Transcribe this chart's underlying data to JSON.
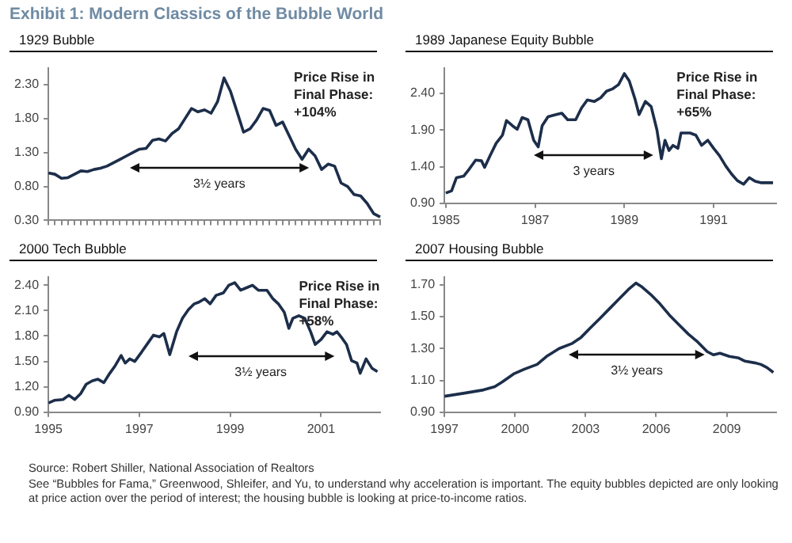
{
  "chart_data": [
    {
      "type": "line",
      "title": "Exhibit 1: Modern Classics of the Bubble World",
      "subtitle": "1929 Bubble",
      "tick_labels": "y",
      "marker": "none",
      "line_style": "solid",
      "grid": false,
      "legend": false,
      "categories": [
        null,
        null,
        null,
        null,
        null,
        null,
        null,
        null,
        null,
        null,
        null,
        null,
        null,
        null,
        null,
        null,
        null,
        null,
        null,
        null,
        null,
        null,
        null,
        null,
        null,
        null,
        null,
        null,
        null,
        null,
        null,
        null,
        null,
        null,
        null,
        null,
        null,
        null,
        null,
        null,
        null,
        null,
        null,
        null,
        null,
        null,
        null,
        null,
        null,
        null,
        null,
        null
      ],
      "series": [
        {
          "color": "#1c2e4a",
          "values": [
            1.0,
            0.98,
            0.92,
            0.93,
            0.98,
            1.03,
            1.02,
            1.05,
            1.07,
            1.1,
            1.15,
            1.2,
            1.25,
            1.3,
            1.35,
            1.36,
            1.48,
            1.5,
            1.47,
            1.58,
            1.65,
            1.8,
            1.95,
            1.9,
            1.93,
            1.88,
            2.05,
            2.4,
            2.2,
            1.9,
            1.6,
            1.65,
            1.78,
            1.95,
            1.92,
            1.7,
            1.75,
            1.55,
            1.35,
            1.2,
            1.35,
            1.25,
            1.05,
            1.13,
            1.1,
            0.85,
            0.8,
            0.68,
            0.66,
            0.55,
            0.4,
            0.35
          ]
        }
      ],
      "ylim": [
        0.3,
        2.55
      ],
      "yticks": [
        {
          "value": 0.3,
          "label": "0.30"
        },
        {
          "value": 0.8,
          "label": "0.80"
        },
        {
          "value": 1.3,
          "label": "1.30"
        },
        {
          "value": 1.8,
          "label": "1.80"
        },
        {
          "value": 2.3,
          "label": "2.30"
        }
      ],
      "annotations": [
        "3½ years",
        "Price Rise in\nFinal Phase:\n+104%"
      ]
    },
    {
      "type": "line",
      "subtitle": "1989 Japanese Equity Bubble",
      "marker": "none",
      "line_style": "solid",
      "grid": false,
      "legend": false,
      "x": [
        1985.0,
        1985.13,
        1985.24,
        1985.4,
        1985.53,
        1985.67,
        1985.8,
        1985.87,
        1986.0,
        1986.13,
        1986.27,
        1986.36,
        1986.49,
        1986.6,
        1986.71,
        1986.84,
        1986.97,
        1987.07,
        1987.16,
        1987.29,
        1987.47,
        1987.6,
        1987.73,
        1987.91,
        1988.04,
        1988.17,
        1988.33,
        1988.47,
        1988.6,
        1988.73,
        1988.87,
        1989.0,
        1989.11,
        1989.24,
        1989.33,
        1989.47,
        1989.6,
        1989.73,
        1989.83,
        1989.91,
        1990.0,
        1990.09,
        1990.2,
        1990.27,
        1990.47,
        1990.6,
        1990.73,
        1990.87,
        1991.0,
        1991.13,
        1991.27,
        1991.4,
        1991.53,
        1991.67,
        1991.8,
        1991.93,
        1992.07,
        1992.33
      ],
      "series": [
        {
          "color": "#1c2e4a",
          "values": [
            1.04,
            1.07,
            1.25,
            1.27,
            1.37,
            1.49,
            1.48,
            1.39,
            1.56,
            1.72,
            1.83,
            2.03,
            1.96,
            1.91,
            2.07,
            2.04,
            1.76,
            1.67,
            1.96,
            2.08,
            2.11,
            2.13,
            2.04,
            2.04,
            2.2,
            2.31,
            2.29,
            2.34,
            2.43,
            2.46,
            2.52,
            2.67,
            2.57,
            2.32,
            2.11,
            2.29,
            2.22,
            1.9,
            1.51,
            1.76,
            1.62,
            1.69,
            1.65,
            1.86,
            1.86,
            1.83,
            1.69,
            1.76,
            1.65,
            1.55,
            1.41,
            1.3,
            1.21,
            1.16,
            1.25,
            1.2,
            1.18,
            1.18
          ]
        }
      ],
      "xlim": [
        1984.97,
        1992.4
      ],
      "xticks": [
        1985,
        1987,
        1989,
        1991
      ],
      "ylim": [
        0.9,
        2.75
      ],
      "yticks": [
        {
          "value": 0.9,
          "label": "0.90"
        },
        {
          "value": 1.4,
          "label": "1.40"
        },
        {
          "value": 1.9,
          "label": "1.90"
        },
        {
          "value": 2.4,
          "label": "2.40"
        }
      ],
      "annotations": [
        "3 years",
        "Price Rise in\nFinal Phase:\n+65%"
      ]
    },
    {
      "type": "line",
      "subtitle": "2000 Tech Bubble",
      "marker": "none",
      "line_style": "solid",
      "grid": false,
      "legend": false,
      "x": [
        1995.0,
        1995.13,
        1995.32,
        1995.45,
        1995.58,
        1995.71,
        1995.83,
        1995.96,
        1996.09,
        1996.22,
        1996.35,
        1996.47,
        1996.6,
        1996.69,
        1996.79,
        1996.9,
        1997.05,
        1997.18,
        1997.31,
        1997.44,
        1997.54,
        1997.67,
        1997.82,
        1997.95,
        1998.08,
        1998.21,
        1998.31,
        1998.44,
        1998.56,
        1998.69,
        1998.85,
        1998.97,
        1999.1,
        1999.23,
        1999.36,
        1999.49,
        1999.62,
        1999.81,
        1999.94,
        2000.06,
        2000.19,
        2000.29,
        2000.38,
        2000.51,
        2000.64,
        2000.77,
        2000.87,
        2001.0,
        2001.13,
        2001.26,
        2001.35,
        2001.44,
        2001.56,
        2001.67,
        2001.79,
        2001.86,
        2001.99,
        2002.12,
        2002.24
      ],
      "series": [
        {
          "color": "#1c2e4a",
          "values": [
            1.01,
            1.04,
            1.05,
            1.1,
            1.05,
            1.12,
            1.23,
            1.27,
            1.29,
            1.25,
            1.36,
            1.45,
            1.57,
            1.48,
            1.53,
            1.5,
            1.61,
            1.71,
            1.81,
            1.79,
            1.83,
            1.58,
            1.85,
            2.01,
            2.11,
            2.18,
            2.2,
            2.24,
            2.18,
            2.28,
            2.31,
            2.4,
            2.43,
            2.34,
            2.37,
            2.4,
            2.34,
            2.34,
            2.24,
            2.18,
            2.08,
            1.89,
            2.01,
            2.04,
            2.01,
            1.85,
            1.7,
            1.76,
            1.85,
            1.82,
            1.85,
            1.79,
            1.7,
            1.51,
            1.48,
            1.36,
            1.53,
            1.42,
            1.38
          ]
        }
      ],
      "xlim": [
        1995,
        2002.3
      ],
      "xticks": [
        1995,
        1997,
        1999,
        2001
      ],
      "ylim": [
        0.9,
        2.5
      ],
      "yticks": [
        {
          "value": 0.9,
          "label": "0.90"
        },
        {
          "value": 1.2,
          "label": "1.20"
        },
        {
          "value": 1.5,
          "label": "1.50"
        },
        {
          "value": 1.8,
          "label": "1.80"
        },
        {
          "value": 2.1,
          "label": "2.10"
        },
        {
          "value": 2.4,
          "label": "2.40"
        }
      ],
      "annotations": [
        "3½ years",
        "Price Rise in\nFinal Phase:\n+58%"
      ]
    },
    {
      "type": "line",
      "subtitle": "2007 Housing Bubble",
      "marker": "none",
      "line_style": "solid",
      "grid": false,
      "legend": false,
      "x": [
        1997.0,
        1997.86,
        1998.66,
        1999.14,
        1999.46,
        1999.94,
        2000.4,
        2000.94,
        2001.34,
        2001.88,
        2002.41,
        2002.81,
        2003.21,
        2003.62,
        2004.02,
        2004.42,
        2004.82,
        2005.14,
        2005.36,
        2005.76,
        2006.16,
        2006.56,
        2006.96,
        2007.37,
        2007.77,
        2008.17,
        2008.44,
        2008.71,
        2009.11,
        2009.51,
        2009.78,
        2010.18,
        2010.45,
        2010.71,
        2010.98
      ],
      "series": [
        {
          "color": "#1c2e4a",
          "values": [
            1.0,
            1.02,
            1.04,
            1.06,
            1.09,
            1.14,
            1.17,
            1.2,
            1.25,
            1.3,
            1.33,
            1.37,
            1.43,
            1.49,
            1.55,
            1.61,
            1.67,
            1.71,
            1.69,
            1.64,
            1.58,
            1.51,
            1.45,
            1.39,
            1.34,
            1.28,
            1.26,
            1.27,
            1.25,
            1.24,
            1.22,
            1.21,
            1.2,
            1.18,
            1.15
          ]
        }
      ],
      "xlim": [
        1997,
        2011.1
      ],
      "xticks": [
        1997,
        2000,
        2003,
        2006,
        2009
      ],
      "ylim": [
        0.9,
        1.75
      ],
      "yticks": [
        {
          "value": 0.9,
          "label": "0.90"
        },
        {
          "value": 1.1,
          "label": "1.10"
        },
        {
          "value": 1.3,
          "label": "1.30"
        },
        {
          "value": 1.5,
          "label": "1.50"
        },
        {
          "value": 1.7,
          "label": "1.70"
        }
      ],
      "annotations": [
        "3½ years"
      ]
    },
    {
      "type": "other",
      "annotations": [
        "Source: Robert Shiller, National Association of Realtors",
        "See “Bubbles for Fama,” Greenwood, Shleifer, and Yu, to understand why acceleration is important. The equity bubbles depicted are only looking at price action over the period of interest; the housing bubble is looking at price-to-income ratios."
      ]
    }
  ]
}
